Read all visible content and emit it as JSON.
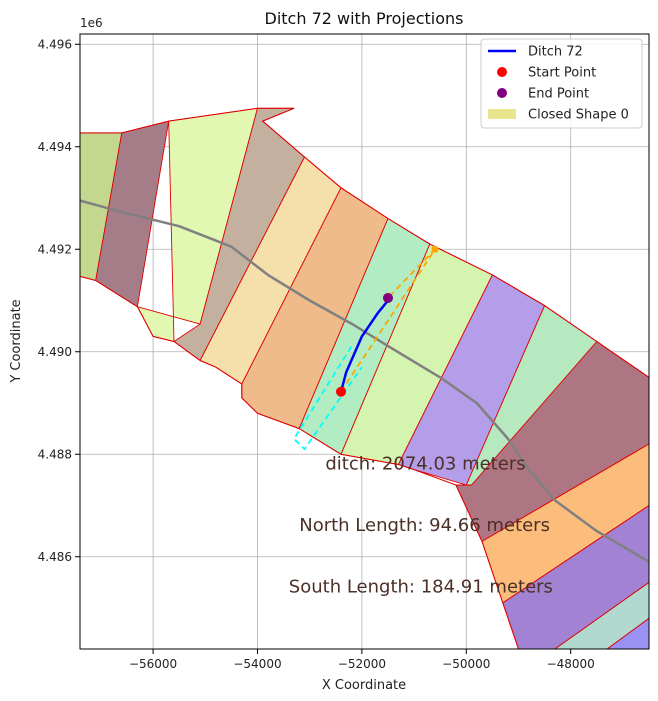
{
  "chart_data": {
    "type": "map-plot",
    "title": "Ditch 72 with Projections",
    "xlabel": "X Coordinate",
    "ylabel": "Y Coordinate",
    "y_offset_label": "1e6",
    "xlim": [
      -57400,
      -46500
    ],
    "ylim": [
      4484200,
      4496200
    ],
    "x_ticks": [
      -56000,
      -54000,
      -52000,
      -50000,
      -48000
    ],
    "x_tick_labels": [
      "−56000",
      "−54000",
      "−52000",
      "−50000",
      "−48000"
    ],
    "y_ticks": [
      4486000,
      4488000,
      4490000,
      4492000,
      4494000,
      4496000
    ],
    "y_tick_labels": [
      "4.486",
      "4.488",
      "4.490",
      "4.492",
      "4.494",
      "4.496"
    ],
    "grid": true,
    "legend_position": "top-right",
    "legend": [
      {
        "label": "Ditch 72",
        "kind": "line",
        "color": "#0000ff"
      },
      {
        "label": "Start Point",
        "kind": "point",
        "color": "#ff0000"
      },
      {
        "label": "End Point",
        "kind": "point",
        "color": "#800080"
      },
      {
        "label": "Closed Shape 0",
        "kind": "patch",
        "color": "#e3e17a"
      }
    ],
    "bands": [
      {
        "color": "#c3d88e",
        "points": [
          [
            -57400,
            4494270
          ],
          [
            -56600,
            4494270
          ],
          [
            -57100,
            4491390
          ],
          [
            -57400,
            4491470
          ]
        ]
      },
      {
        "color": "#a47d89",
        "points": [
          [
            -56600,
            4494270
          ],
          [
            -55700,
            4494500
          ],
          [
            -56300,
            4490880
          ],
          [
            -57100,
            4491390
          ]
        ]
      },
      {
        "color": "#e2f7b2",
        "points": [
          [
            -55700,
            4494500
          ],
          [
            -54000,
            4494750
          ],
          [
            -55100,
            4490540
          ],
          [
            -56300,
            4490880
          ],
          [
            -56000,
            4490300
          ],
          [
            -55600,
            4490200
          ]
        ]
      },
      {
        "color": "#c4b09f",
        "points": [
          [
            -54000,
            4494750
          ],
          [
            -53300,
            4494750
          ],
          [
            -53900,
            4494500
          ],
          [
            -53100,
            4493800
          ],
          [
            -55100,
            4489830
          ],
          [
            -55600,
            4490200
          ],
          [
            -55100,
            4490540
          ]
        ]
      },
      {
        "color": "#f5dfaa",
        "points": [
          [
            -53100,
            4493800
          ],
          [
            -52400,
            4493200
          ],
          [
            -54300,
            4489370
          ],
          [
            -54800,
            4489700
          ],
          [
            -55100,
            4489830
          ]
        ]
      },
      {
        "color": "#efbb8a",
        "points": [
          [
            -52400,
            4493200
          ],
          [
            -51500,
            4492600
          ],
          [
            -53200,
            4488500
          ],
          [
            -54000,
            4488800
          ],
          [
            -54300,
            4489100
          ],
          [
            -54300,
            4489370
          ]
        ]
      },
      {
        "color": "#b2ecc3",
        "points": [
          [
            -51500,
            4492600
          ],
          [
            -50700,
            4492100
          ],
          [
            -52400,
            4488000
          ],
          [
            -53200,
            4488500
          ]
        ]
      },
      {
        "color": "#d4f4b0",
        "points": [
          [
            -50700,
            4492100
          ],
          [
            -49500,
            4491500
          ],
          [
            -51300,
            4487800
          ],
          [
            -52400,
            4488000
          ]
        ]
      },
      {
        "color": "#b49ee9",
        "points": [
          [
            -49500,
            4491500
          ],
          [
            -48500,
            4490900
          ],
          [
            -50000,
            4487400
          ],
          [
            -51000,
            4487700
          ],
          [
            -51300,
            4487800
          ]
        ]
      },
      {
        "color": "#b7e9c0",
        "points": [
          [
            -48500,
            4490900
          ],
          [
            -47500,
            4490200
          ],
          [
            -49000,
            4487000
          ],
          [
            -49900,
            4487400
          ],
          [
            -50000,
            4487400
          ]
        ]
      },
      {
        "color": "#ae7583",
        "points": [
          [
            -47500,
            4490200
          ],
          [
            -46500,
            4489500
          ],
          [
            -46500,
            4488200
          ],
          [
            -49700,
            4486300
          ],
          [
            -50200,
            4487400
          ],
          [
            -49900,
            4487400
          ]
        ]
      },
      {
        "color": "#fbbc7c",
        "points": [
          [
            -46500,
            4488200
          ],
          [
            -46500,
            4487000
          ],
          [
            -49300,
            4485100
          ],
          [
            -49700,
            4486300
          ]
        ]
      },
      {
        "color": "#a182d3",
        "points": [
          [
            -46500,
            4487000
          ],
          [
            -46500,
            4485500
          ],
          [
            -48300,
            4484200
          ],
          [
            -49000,
            4484200
          ],
          [
            -49300,
            4485100
          ]
        ]
      },
      {
        "color": "#b1d9cf",
        "points": [
          [
            -46500,
            4485500
          ],
          [
            -46500,
            4484800
          ],
          [
            -47300,
            4484200
          ],
          [
            -48300,
            4484200
          ]
        ]
      },
      {
        "color": "#9a92f2",
        "points": [
          [
            -46500,
            4484800
          ],
          [
            -46500,
            4484200
          ],
          [
            -47300,
            4484200
          ]
        ]
      }
    ],
    "closed_shape_outline": [
      [
        -57400,
        4494270
      ],
      [
        -56600,
        4494270
      ],
      [
        -55700,
        4494500
      ],
      [
        -54000,
        4494750
      ],
      [
        -53300,
        4494750
      ],
      [
        -53900,
        4494500
      ],
      [
        -53100,
        4493800
      ],
      [
        -52400,
        4493200
      ],
      [
        -51500,
        4492600
      ],
      [
        -50700,
        4492100
      ],
      [
        -49500,
        4491500
      ],
      [
        -48500,
        4490900
      ],
      [
        -47500,
        4490200
      ],
      [
        -46500,
        4489500
      ]
    ],
    "closed_shape_outline_bottom": [
      [
        -57400,
        4491470
      ],
      [
        -57100,
        4491390
      ],
      [
        -56300,
        4490880
      ],
      [
        -56000,
        4490300
      ],
      [
        -55600,
        4490200
      ],
      [
        -55100,
        4489830
      ],
      [
        -54800,
        4489700
      ],
      [
        -54300,
        4489370
      ],
      [
        -54300,
        4489100
      ],
      [
        -54000,
        4488800
      ],
      [
        -53200,
        4488500
      ],
      [
        -52400,
        4488000
      ],
      [
        -51300,
        4487800
      ],
      [
        -51000,
        4487700
      ],
      [
        -50200,
        4487400
      ],
      [
        -49700,
        4486300
      ],
      [
        -49300,
        4485100
      ],
      [
        -49000,
        4484200
      ]
    ],
    "centerline": {
      "color": "#808080",
      "points": [
        [
          -57400,
          4492950
        ],
        [
          -56500,
          4492700
        ],
        [
          -55500,
          4492450
        ],
        [
          -54500,
          4492050
        ],
        [
          -53800,
          4491500
        ],
        [
          -53000,
          4491000
        ],
        [
          -52200,
          4490550
        ],
        [
          -51400,
          4490050
        ],
        [
          -50500,
          4489500
        ],
        [
          -49800,
          4489000
        ],
        [
          -49200,
          4488300
        ],
        [
          -48800,
          4487700
        ],
        [
          -48300,
          4487100
        ],
        [
          -47500,
          4486500
        ],
        [
          -46500,
          4485900
        ]
      ]
    },
    "ditch": {
      "color": "#0000ff",
      "points": [
        [
          -52400,
          4489220
        ],
        [
          -52300,
          4489600
        ],
        [
          -52000,
          4490300
        ],
        [
          -51700,
          4490750
        ],
        [
          -51500,
          4491000
        ]
      ]
    },
    "start_point": {
      "x": -52400,
      "y": 4489220,
      "color": "#ff0000"
    },
    "end_point": {
      "x": -51500,
      "y": 4491050,
      "color": "#800080"
    },
    "north_projection": {
      "color": "#ffa500",
      "points": [
        [
          -52400,
          4489220
        ],
        [
          -50600,
          4492000
        ],
        [
          -51500,
          4491050
        ]
      ],
      "end_marker": {
        "x": -50600,
        "y": 4492000
      }
    },
    "south_projection": {
      "color": "#00ffff",
      "points": [
        [
          -52200,
          4490100
        ],
        [
          -53300,
          4488300
        ],
        [
          -53100,
          4488100
        ],
        [
          -52000,
          4489700
        ]
      ]
    },
    "annotations": [
      {
        "text": "ditch: 2074.03 meters",
        "x": -52700,
        "y": 4487700
      },
      {
        "text": "North Length: 94.66 meters",
        "x": -53200,
        "y": 4486500
      },
      {
        "text": "South Length: 184.91 meters",
        "x": -53400,
        "y": 4485300
      }
    ]
  }
}
